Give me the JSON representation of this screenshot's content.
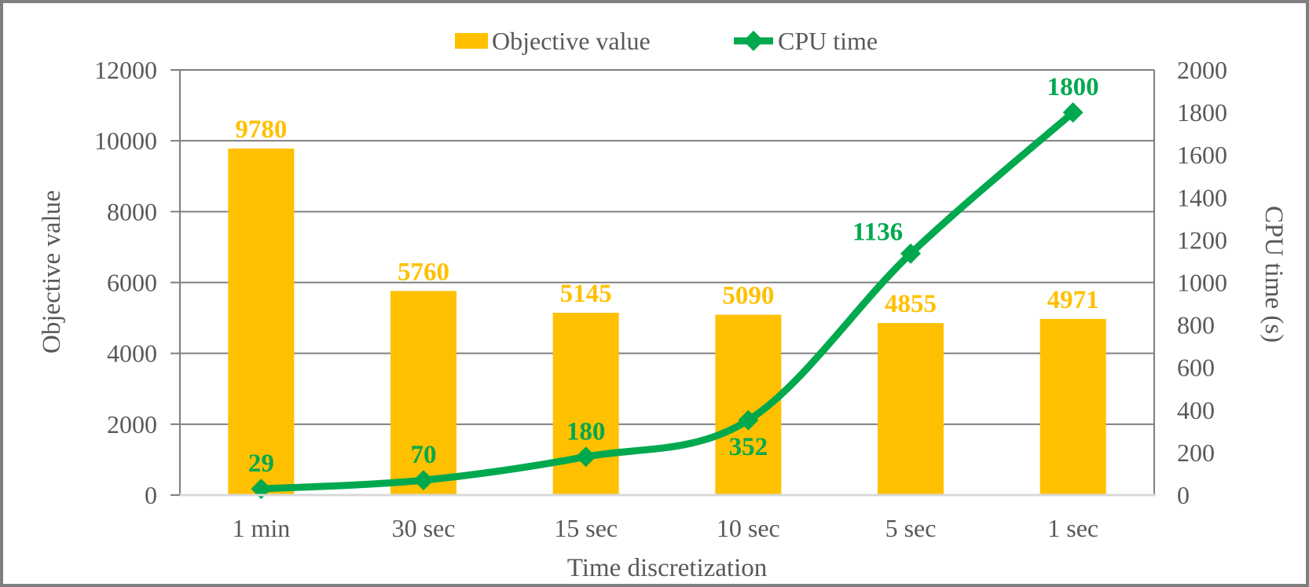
{
  "chart_data": {
    "type": "combo-bar-line",
    "title": "",
    "categories": [
      "1 min",
      "30 sec",
      "15 sec",
      "10 sec",
      "5 sec",
      "1 sec"
    ],
    "series": [
      {
        "name": "Objective value",
        "type": "bar",
        "axis": "left",
        "values": [
          9780,
          5760,
          5145,
          5090,
          4855,
          4971
        ],
        "data_labels": [
          "9780",
          "5760",
          "5145",
          "5090",
          "4855",
          "4971"
        ],
        "color": "#FFC000"
      },
      {
        "name": "CPU time",
        "type": "line",
        "axis": "right",
        "values": [
          29,
          70,
          180,
          352,
          1136,
          1800
        ],
        "data_labels": [
          "29",
          "70",
          "180",
          "352",
          "1136",
          "1800"
        ],
        "label_pos": [
          "above",
          "above",
          "above",
          "below",
          "above-left",
          "above"
        ],
        "marker": "diamond",
        "color": "#00A94E"
      }
    ],
    "left_axis": {
      "title": "Objective value",
      "min": 0,
      "max": 12000,
      "step": 2000,
      "ticks": [
        0,
        2000,
        4000,
        6000,
        8000,
        10000,
        12000
      ]
    },
    "right_axis": {
      "title": "CPU time (s)",
      "min": 0,
      "max": 2000,
      "step": 200,
      "ticks": [
        0,
        200,
        400,
        600,
        800,
        1000,
        1200,
        1400,
        1600,
        1800,
        2000
      ]
    },
    "x_axis": {
      "title": "Time discretization"
    },
    "legend": {
      "position": "top"
    },
    "grid": "horizontal",
    "colors": {
      "bar": "#FFC000",
      "line": "#00A94E",
      "grid": "#7F7F7F",
      "baseline": "#D9D9D9",
      "text": "#595959",
      "border": "#7F7F7F"
    }
  }
}
